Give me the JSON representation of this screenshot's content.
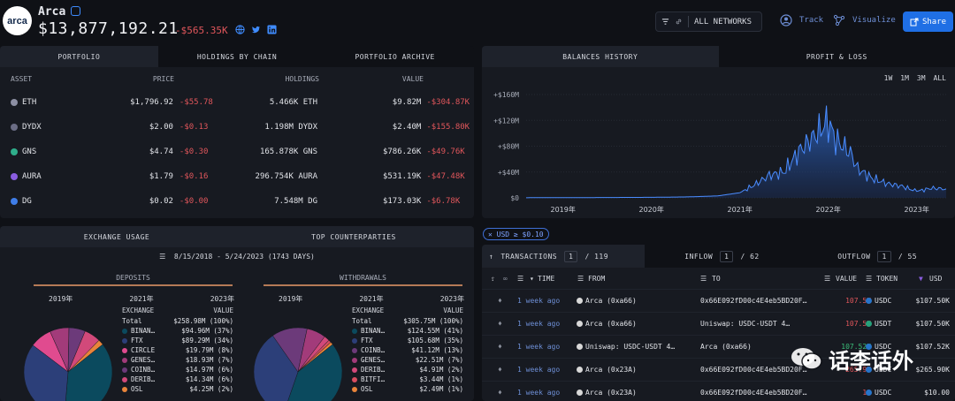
{
  "entity": {
    "logo_text": "arca",
    "name": "Arca",
    "value": "$13,877,192.21",
    "change": "-$565.35K"
  },
  "toolbar": {
    "network": "ALL NETWORKS",
    "track": "Track",
    "visualize": "Visualize",
    "share": "Share"
  },
  "portfolio": {
    "tabs": [
      "PORTFOLIO",
      "HOLDINGS BY CHAIN",
      "PORTFOLIO ARCHIVE"
    ],
    "columns": [
      "ASSET",
      "PRICE",
      "HOLDINGS",
      "VALUE"
    ],
    "rows": [
      {
        "asset": "ETH",
        "price": "$1,796.92",
        "price_chg": "-$55.78",
        "holdings": "5.466K ETH",
        "value": "$9.82M",
        "value_chg": "-$304.87K",
        "icon_color": "#8c8fa3"
      },
      {
        "asset": "DYDX",
        "price": "$2.00",
        "price_chg": "-$0.13",
        "holdings": "1.198M DYDX",
        "value": "$2.40M",
        "value_chg": "-$155.80K",
        "icon_color": "#6b6d85"
      },
      {
        "asset": "GNS",
        "price": "$4.74",
        "price_chg": "-$0.30",
        "holdings": "165.878K GNS",
        "value": "$786.26K",
        "value_chg": "-$49.76K",
        "icon_color": "#2fae8b"
      },
      {
        "asset": "AURA",
        "price": "$1.79",
        "price_chg": "-$0.16",
        "holdings": "296.754K AURA",
        "value": "$531.19K",
        "value_chg": "-$47.48K",
        "icon_color": "#8a5de0"
      },
      {
        "asset": "DG",
        "price": "$0.02",
        "price_chg": "-$0.00",
        "holdings": "7.548M DG",
        "value": "$173.03K",
        "value_chg": "-$6.78K",
        "icon_color": "#3f7de8"
      }
    ]
  },
  "balances": {
    "tabs": [
      "BALANCES HISTORY",
      "PROFIT & LOSS"
    ],
    "ranges": [
      "1W",
      "1M",
      "3M",
      "ALL"
    ],
    "chart_data": {
      "type": "area",
      "x": [
        "2018-08",
        "2019-01",
        "2019-06",
        "2020-01",
        "2020-06",
        "2020-10",
        "2021-01",
        "2021-03",
        "2021-05",
        "2021-07",
        "2021-09",
        "2021-11",
        "2022-01",
        "2022-02",
        "2022-04",
        "2022-05",
        "2022-07",
        "2022-09",
        "2022-11",
        "2023-01",
        "2023-03",
        "2023-05"
      ],
      "values": [
        0.2,
        0.3,
        0.5,
        0.8,
        1.5,
        3,
        8,
        20,
        35,
        40,
        72,
        95,
        118,
        90,
        70,
        45,
        30,
        22,
        18,
        10,
        15,
        13.9
      ],
      "yticks": [
        "$0",
        "+$40M",
        "+$80M",
        "+$120M",
        "+$160M"
      ],
      "xticks": [
        "2019年",
        "2020年",
        "2021年",
        "2022年",
        "2023年"
      ],
      "ylim": [
        0,
        160
      ]
    }
  },
  "exchange": {
    "tabs": [
      "EXCHANGE USAGE",
      "TOP COUNTERPARTIES"
    ],
    "date_range": "8/15/2018 - 5/24/2023 (1743 DAYS)",
    "deposits": {
      "title": "DEPOSITS",
      "years": [
        "2019年",
        "2021年",
        "2023年"
      ],
      "header": [
        "EXCHANGE",
        "VALUE"
      ],
      "items": [
        {
          "name": "Total",
          "value": "$258.98M (100%)",
          "color": ""
        },
        {
          "name": "BINAN…",
          "value": "$94.96M (37%)",
          "color": "#0b4a5e"
        },
        {
          "name": "FTX",
          "value": "$89.29M (34%)",
          "color": "#2c3f79"
        },
        {
          "name": "CIRCLE",
          "value": "$19.79M (8%)",
          "color": "#e04b8f"
        },
        {
          "name": "GENES…",
          "value": "$18.93M (7%)",
          "color": "#a23b7a"
        },
        {
          "name": "COINB…",
          "value": "$14.97M (6%)",
          "color": "#6c3a7a"
        },
        {
          "name": "DERIB…",
          "value": "$14.34M (6%)",
          "color": "#d2497a"
        },
        {
          "name": "OSL",
          "value": "$4.25M (2%)",
          "color": "#e9843a"
        }
      ],
      "chart_data": {
        "type": "pie",
        "labels": [
          "BINANCE",
          "FTX",
          "CIRCLE",
          "GENESIS",
          "COINBASE",
          "DERIBIT",
          "OSL"
        ],
        "values": [
          37,
          34,
          8,
          7,
          6,
          6,
          2
        ]
      }
    },
    "withdrawals": {
      "title": "WITHDRAWALS",
      "years": [
        "2019年",
        "2021年",
        "2023年"
      ],
      "header": [
        "EXCHANGE",
        "VALUE"
      ],
      "items": [
        {
          "name": "Total",
          "value": "$305.75M (100%)",
          "color": ""
        },
        {
          "name": "BINAN…",
          "value": "$124.55M (41%)",
          "color": "#0b4a5e"
        },
        {
          "name": "FTX",
          "value": "$105.68M (35%)",
          "color": "#2c3f79"
        },
        {
          "name": "COINB…",
          "value": "$41.12M (13%)",
          "color": "#6c3a7a"
        },
        {
          "name": "GENES…",
          "value": "$22.51M (7%)",
          "color": "#a23b7a"
        },
        {
          "name": "DERIB…",
          "value": "$4.91M (2%)",
          "color": "#d2497a"
        },
        {
          "name": "BITFI…",
          "value": "$3.44M (1%)",
          "color": "#d84e60"
        },
        {
          "name": "OSL",
          "value": "$2.49M (1%)",
          "color": "#e9843a"
        }
      ],
      "chart_data": {
        "type": "pie",
        "labels": [
          "BINANCE",
          "FTX",
          "COINBASE",
          "GENESIS",
          "DERIBIT",
          "BITFINEX",
          "OSL"
        ],
        "values": [
          41,
          35,
          13,
          7,
          2,
          1,
          1
        ]
      }
    }
  },
  "filter_chip": "USD ≥ $0.10",
  "transactions": {
    "tabs": [
      {
        "label": "TRANSACTIONS",
        "page": "1",
        "total": "/ 119"
      },
      {
        "label": "INFLOW",
        "page": "1",
        "total": "/ 62"
      },
      {
        "label": "OUTFLOW",
        "page": "1",
        "total": "/ 55"
      }
    ],
    "columns": [
      "TIME",
      "FROM",
      "TO",
      "VALUE",
      "TOKEN",
      "USD"
    ],
    "rows": [
      {
        "time": "1 week ago",
        "from": "Arca (0xa66)",
        "to": "0x66E092fD00c4E4eb5BD20F…",
        "value": "107.5K",
        "token": "USDC",
        "usd": "$107.50K",
        "vcolor": "neg"
      },
      {
        "time": "1 week ago",
        "from": "Arca (0xa66)",
        "to": "Uniswap: USDC-USDT 4…",
        "value": "107.5K",
        "token": "USDT",
        "usd": "$107.50K",
        "vcolor": "neg"
      },
      {
        "time": "1 week ago",
        "from": "Uniswap: USDC-USDT 4…",
        "to": "Arca (0xa66)",
        "value": "107.52K",
        "token": "USDC",
        "usd": "$107.52K",
        "vcolor": "pos"
      },
      {
        "time": "1 week ago",
        "from": "Arca (0x23A)",
        "to": "0x66E092fD00c4E4eb5BD20F…",
        "value": "265.9K",
        "token": "USDC",
        "usd": "$265.90K",
        "vcolor": "neg"
      },
      {
        "time": "1 week ago",
        "from": "Arca (0x23A)",
        "to": "0x66E092fD00c4E4eb5BD20F…",
        "value": "10",
        "token": "USDC",
        "usd": "$10.00",
        "vcolor": "neg"
      }
    ]
  },
  "watermark": "话李话外"
}
